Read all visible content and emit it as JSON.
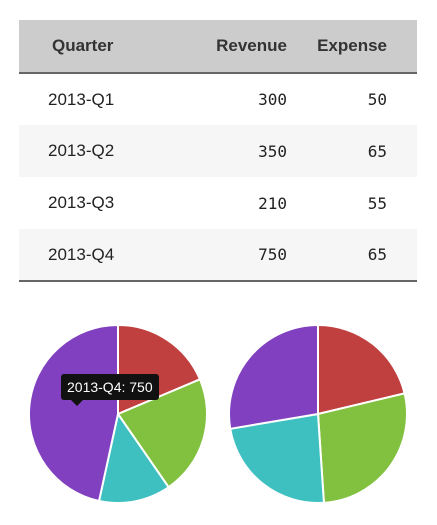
{
  "table": {
    "headers": {
      "quarter": "Quarter",
      "revenue": "Revenue",
      "expense": "Expense"
    },
    "rows": [
      {
        "quarter": "2013-Q1",
        "revenue": "300",
        "expense": "50"
      },
      {
        "quarter": "2013-Q2",
        "revenue": "350",
        "expense": "65"
      },
      {
        "quarter": "2013-Q3",
        "revenue": "210",
        "expense": "55"
      },
      {
        "quarter": "2013-Q4",
        "revenue": "750",
        "expense": "65"
      }
    ]
  },
  "tooltip": {
    "text": "2013-Q4: 750"
  },
  "chart_data": [
    {
      "type": "pie",
      "categories": [
        "2013-Q1",
        "2013-Q2",
        "2013-Q3",
        "2013-Q4"
      ],
      "values": [
        300,
        350,
        210,
        750
      ],
      "colors": [
        "#c0403f",
        "#82c03f",
        "#3fc0c0",
        "#8040c0"
      ]
    },
    {
      "type": "pie",
      "categories": [
        "2013-Q1",
        "2013-Q2",
        "2013-Q3",
        "2013-Q4"
      ],
      "values": [
        50,
        65,
        55,
        65
      ],
      "colors": [
        "#c0403f",
        "#82c03f",
        "#3fc0c0",
        "#8040c0"
      ]
    }
  ]
}
